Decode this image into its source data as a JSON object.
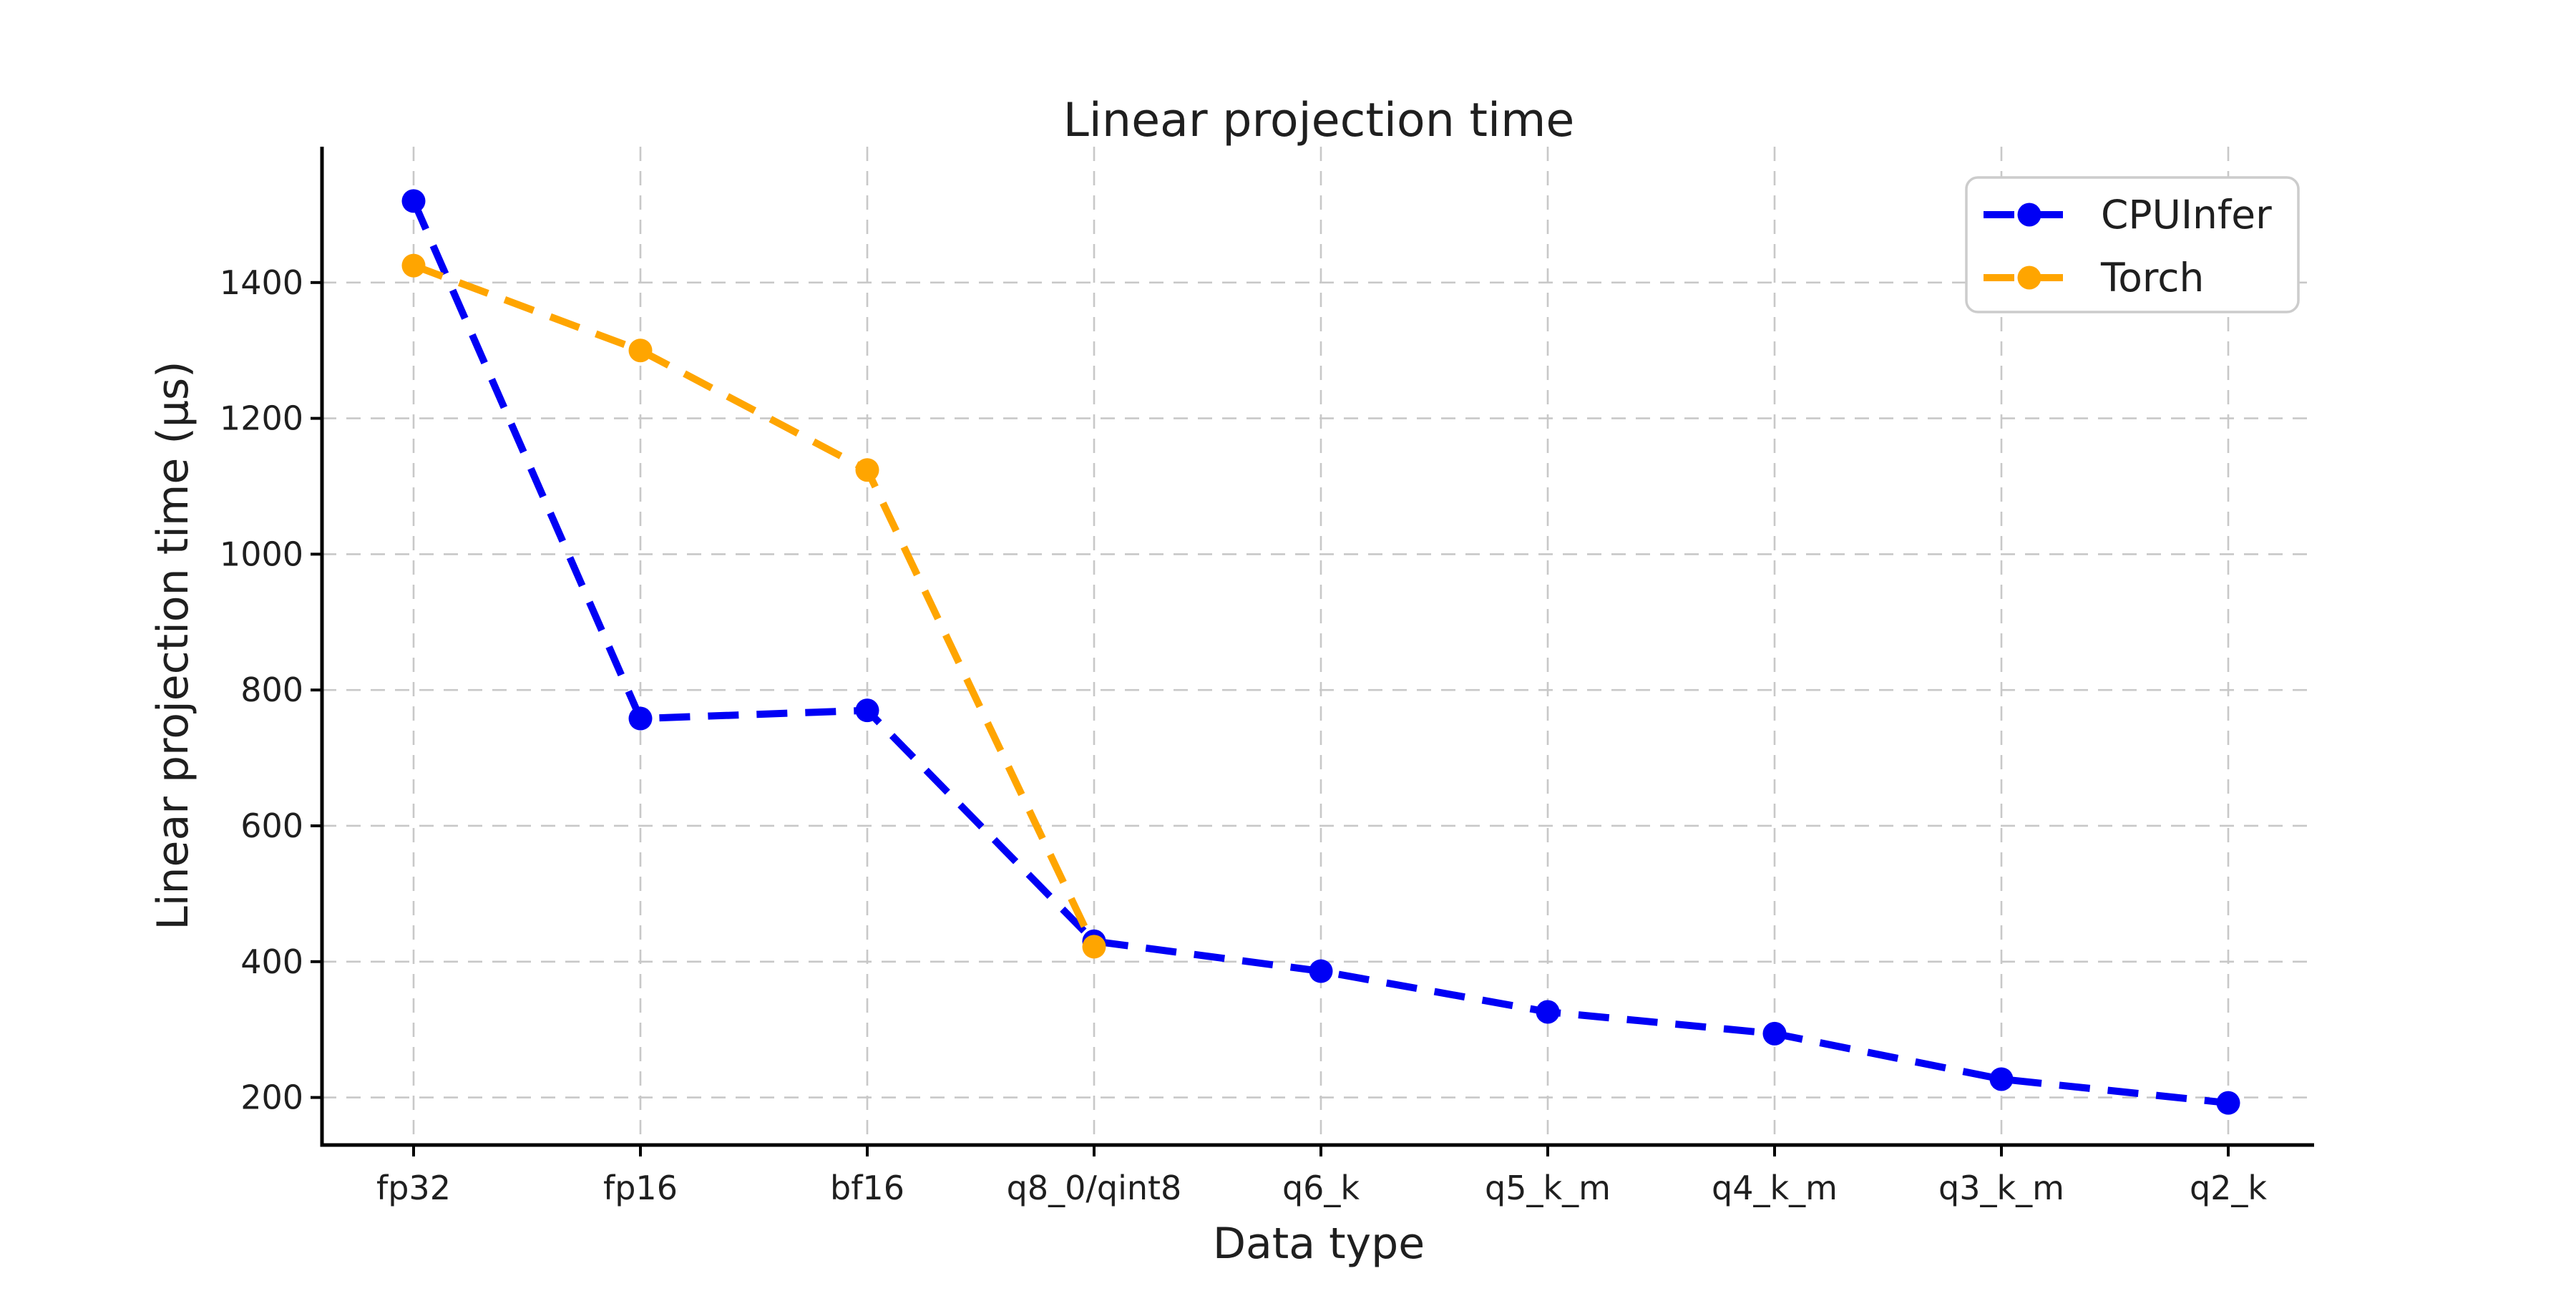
{
  "figure": {
    "title": "Linear projection time",
    "xlabel": "Data type",
    "ylabel": "Linear projection time (µs)"
  },
  "legend": {
    "position": "upper right",
    "entries": [
      {
        "label": "CPUInfer",
        "color": "#0000f5",
        "marker": "circle-icon",
        "line": "dashed"
      },
      {
        "label": "Torch",
        "color": "#ffa500",
        "marker": "circle-icon",
        "line": "dashed"
      }
    ]
  },
  "chart_data": {
    "type": "line",
    "title": "Linear projection time",
    "xlabel": "Data type",
    "ylabel": "Linear projection time (µs)",
    "categories": [
      "fp32",
      "fp16",
      "bf16",
      "q8_0/qint8",
      "q6_k",
      "q5_k_m",
      "q4_k_m",
      "q3_k_m",
      "q2_k"
    ],
    "series": [
      {
        "name": "CPUInfer",
        "color": "#0000f5",
        "line_style": "dashed",
        "marker": "circle",
        "values": [
          1520,
          758,
          770,
          430,
          386,
          326,
          294,
          227,
          192
        ]
      },
      {
        "name": "Torch",
        "color": "#ffa500",
        "line_style": "dashed",
        "marker": "circle",
        "values": [
          1425,
          1300,
          1124,
          422,
          null,
          null,
          null,
          null,
          null
        ]
      }
    ],
    "yticks": [
      200,
      400,
      600,
      800,
      1000,
      1200,
      1400
    ],
    "ylim": [
      130,
      1600
    ],
    "grid": true,
    "grid_style": "dashed",
    "grid_color": "#c8c8c8",
    "legend_position": "upper right"
  }
}
